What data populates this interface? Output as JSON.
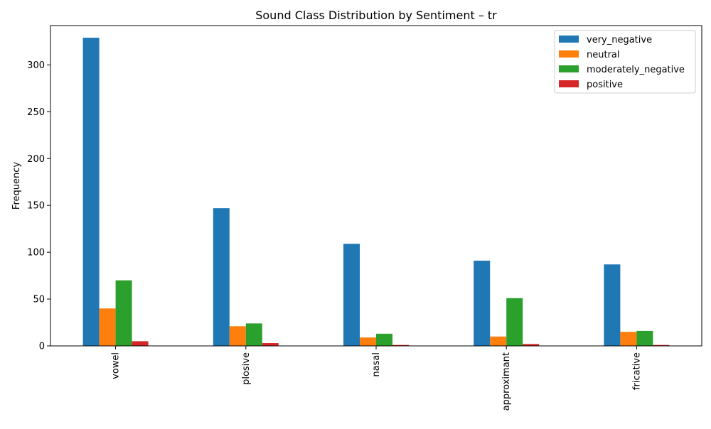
{
  "chart_data": {
    "type": "bar",
    "title": "Sound Class Distribution by Sentiment – tr",
    "xlabel": "",
    "ylabel": "Frequency",
    "ylim": [
      0,
      342
    ],
    "yticks": [
      0,
      50,
      100,
      150,
      200,
      250,
      300
    ],
    "grid": false,
    "legend_position": "top-right",
    "categories": [
      "vowel",
      "plosive",
      "nasal",
      "approximant",
      "fricative"
    ],
    "series": [
      {
        "name": "very_negative",
        "color": "#1f77b4",
        "values": [
          329,
          147,
          109,
          91,
          87
        ]
      },
      {
        "name": "neutral",
        "color": "#ff7f0e",
        "values": [
          40,
          21,
          9,
          10,
          15
        ]
      },
      {
        "name": "moderately_negative",
        "color": "#2ca02c",
        "values": [
          70,
          24,
          13,
          51,
          16
        ]
      },
      {
        "name": "positive",
        "color": "#d62728",
        "values": [
          5,
          3,
          1,
          2,
          1
        ]
      }
    ]
  }
}
